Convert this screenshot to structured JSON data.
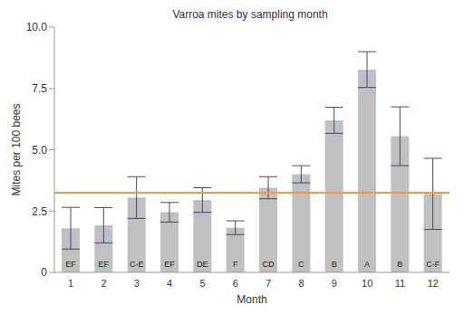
{
  "chart_data": {
    "type": "bar",
    "title": "Varroa mites by sampling month",
    "x_label": "Month",
    "y_label": "Mites per 100 bees",
    "categories": [
      "1",
      "2",
      "3",
      "4",
      "5",
      "6",
      "7",
      "8",
      "9",
      "10",
      "11",
      "12"
    ],
    "values": [
      1.8,
      1.92,
      3.05,
      2.45,
      2.95,
      1.82,
      3.45,
      4.0,
      6.2,
      8.27,
      5.55,
      3.2
    ],
    "error": [
      0.85,
      0.72,
      0.85,
      0.4,
      0.5,
      0.28,
      0.45,
      0.35,
      0.53,
      0.73,
      1.2,
      1.45
    ],
    "group_labels": [
      "EF",
      "EF",
      "C-E",
      "EF",
      "DE",
      "F",
      "CD",
      "C",
      "B",
      "A",
      "B",
      "C-F"
    ],
    "reference_line": 3.25,
    "reference_color": "#f39c34",
    "color": "#c0c0c0",
    "error_color": "#3a4a7a",
    "ylim": [
      0,
      10
    ],
    "yticks": [
      0,
      2.5,
      {
        "value": 5,
        "label": "5.0"
      },
      7.5,
      {
        "value": 10,
        "label": "10.0"
      }
    ],
    "grid": false
  }
}
